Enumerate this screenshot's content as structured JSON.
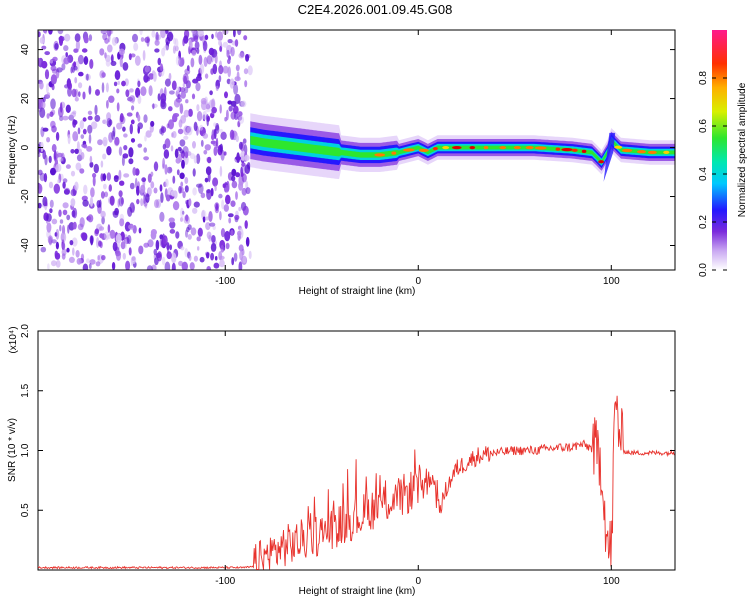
{
  "title": "C2E4.2026.001.09.45.G08",
  "colors": {
    "snr_line": "#e8322c",
    "noise_purple": "#7b2bdc",
    "axis": "#000000"
  },
  "chart_data": [
    {
      "type": "heatmap",
      "xlabel": "Height of straight line (km)",
      "ylabel": "Frequency (Hz)",
      "xlim": [
        -197,
        133
      ],
      "ylim": [
        -50,
        48
      ],
      "xticks": [
        -100,
        0,
        100
      ],
      "xtick_labels": [
        "-100",
        "0",
        "100"
      ],
      "yticks": [
        -40,
        -20,
        0,
        20,
        40
      ],
      "ytick_labels": [
        "-40",
        "-20",
        "0",
        "20",
        "40"
      ],
      "noise_region_x": [
        -197,
        -87
      ],
      "ridge": {
        "x": [
          -87,
          -80,
          -70,
          -60,
          -50,
          -40,
          -30,
          -20,
          -10,
          0,
          5,
          10,
          20,
          40,
          60,
          80,
          90,
          95,
          98,
          100,
          105,
          120,
          133
        ],
        "freq_hz": [
          3,
          2,
          1,
          0,
          -1,
          -2,
          -3,
          -3,
          -2,
          0,
          -2,
          0,
          0,
          0,
          0,
          -1,
          -2,
          -6,
          -2,
          3,
          -1,
          -2,
          -2
        ]
      },
      "colorbar": {
        "label": "Normalized spectral amplitude",
        "range": [
          0,
          1
        ],
        "ticks": [
          0.0,
          0.2,
          0.4,
          0.6,
          0.8
        ],
        "tick_labels": [
          "0.0",
          "0.2",
          "0.4",
          "0.6",
          "0.8"
        ],
        "colormap": "rainbow (white-violet-blue-cyan-green-yellow-orange-red-magenta)"
      }
    },
    {
      "type": "line",
      "xlabel": "Height of straight line (km)",
      "ylabel": "SNR (10 * v/v)",
      "scale_label": "(x10⁴)",
      "xlim": [
        -197,
        133
      ],
      "ylim": [
        0,
        2.0
      ],
      "xticks": [
        -100,
        0,
        100
      ],
      "xtick_labels": [
        "-100",
        "0",
        "100"
      ],
      "yticks": [
        0.5,
        1.0,
        1.5,
        2.0
      ],
      "ytick_labels": [
        "0.5",
        "1.0",
        "1.5",
        "2.0"
      ],
      "series": [
        {
          "name": "SNR",
          "x": [
            -197,
            -90,
            -85,
            -80,
            -75,
            -70,
            -65,
            -60,
            -55,
            -50,
            -45,
            -40,
            -35,
            -30,
            -25,
            -20,
            -15,
            -10,
            -5,
            0,
            5,
            8,
            10,
            12,
            15,
            20,
            25,
            30,
            35,
            40,
            50,
            60,
            70,
            80,
            85,
            90,
            95,
            98,
            100,
            102,
            104,
            106,
            110,
            120,
            133
          ],
          "y": [
            0.02,
            0.02,
            0.03,
            0.1,
            0.15,
            0.2,
            0.22,
            0.25,
            0.28,
            0.3,
            0.35,
            0.38,
            0.42,
            0.45,
            0.5,
            0.55,
            0.58,
            0.6,
            0.65,
            0.7,
            0.75,
            0.8,
            0.5,
            0.55,
            0.7,
            0.85,
            0.9,
            0.95,
            0.97,
            0.98,
            1.0,
            1.0,
            1.02,
            1.03,
            1.05,
            1.02,
            0.9,
            0.2,
            0.15,
            1.4,
            1.2,
            1.0,
            0.98,
            0.98,
            0.98
          ]
        }
      ]
    }
  ]
}
